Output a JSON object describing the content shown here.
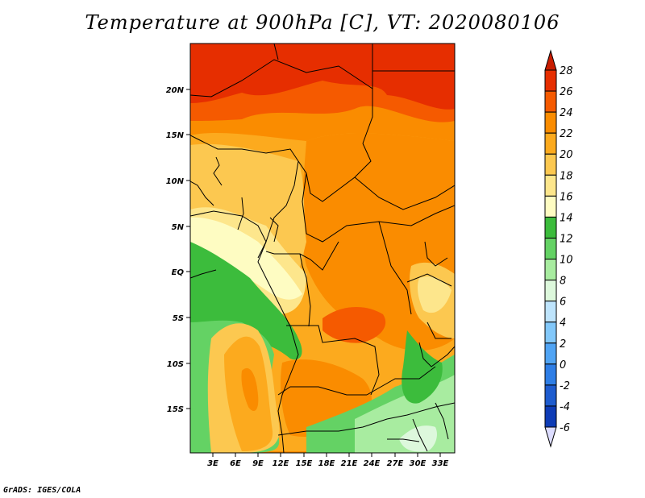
{
  "title": "Temperature at 900hPa [C], VT: 2020080106",
  "credit": "GrADS: IGES/COLA",
  "map": {
    "variable": "Temperature",
    "level": "900hPa",
    "units": "C",
    "valid_time": "2020080106",
    "lat_ticks": [
      "20N",
      "15N",
      "10N",
      "5N",
      "EQ",
      "5S",
      "10S",
      "15S"
    ],
    "lon_ticks": [
      "3E",
      "6E",
      "9E",
      "12E",
      "15E",
      "18E",
      "21E",
      "24E",
      "27E",
      "30E",
      "33E"
    ]
  },
  "colorbar": {
    "labels": [
      "28",
      "26",
      "24",
      "22",
      "20",
      "18",
      "16",
      "14",
      "12",
      "10",
      "8",
      "6",
      "4",
      "2",
      "0",
      "-2",
      "-4",
      "-6"
    ],
    "colors": [
      "#e62e00",
      "#f55a00",
      "#fa8c00",
      "#fcaa1e",
      "#fcc850",
      "#fde68c",
      "#fefcc2",
      "#3cbc3c",
      "#64d264",
      "#a8eca0",
      "#ddf8dc",
      "#bee4fc",
      "#82c8fa",
      "#50a4f4",
      "#2e7ee6",
      "#1e5ccf",
      "#0e3cb6",
      "#0a0e74"
    ],
    "top_arrow_color": "#c81c00",
    "bottom_arrow_color": "#ddddff"
  }
}
